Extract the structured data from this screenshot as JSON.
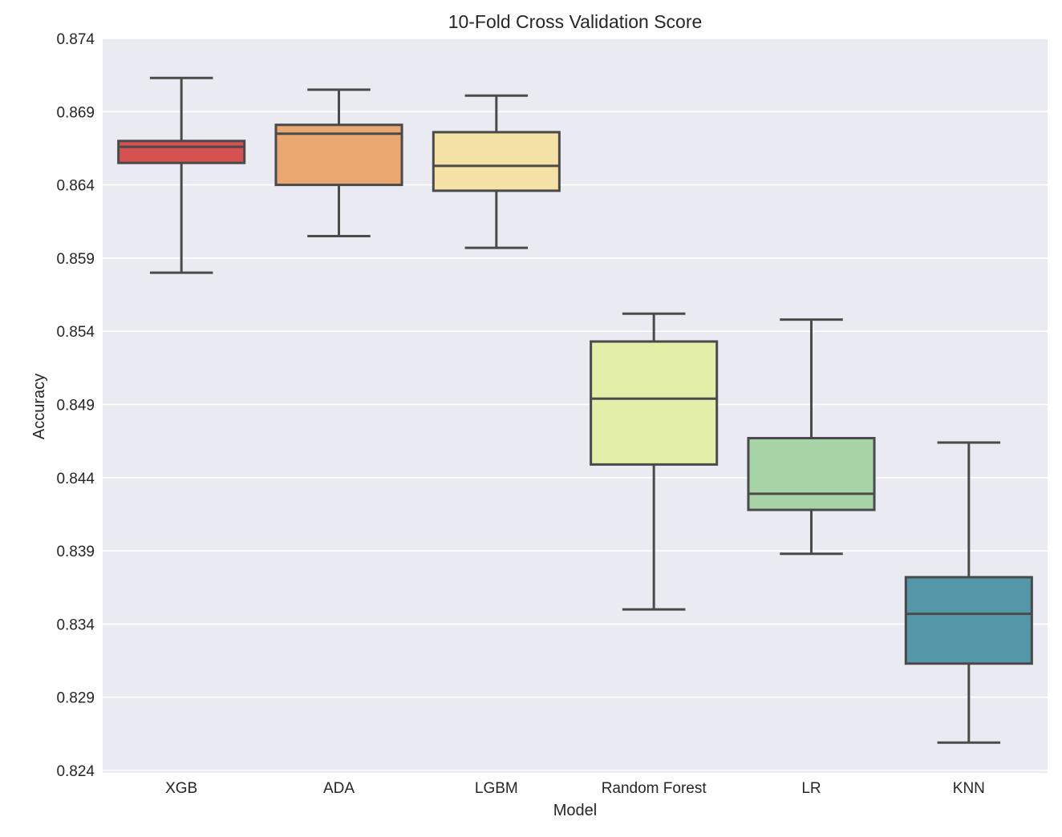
{
  "chart_data": {
    "type": "box",
    "title": "10-Fold Cross Validation Score",
    "xlabel": "Model",
    "ylabel": "Accuracy",
    "ylim": [
      0.824,
      0.874
    ],
    "yticks": [
      "0.874",
      "0.869",
      "0.864",
      "0.859",
      "0.854",
      "0.849",
      "0.844",
      "0.839",
      "0.834",
      "0.829",
      "0.824"
    ],
    "grid": true,
    "categories": [
      "XGB",
      "ADA",
      "LGBM",
      "Random Forest",
      "LR",
      "KNN"
    ],
    "boxes": [
      {
        "name": "XGB",
        "min": 0.858,
        "q1": 0.8655,
        "median": 0.8666,
        "q3": 0.867,
        "max": 0.8713,
        "color": "#d6514f"
      },
      {
        "name": "ADA",
        "min": 0.8605,
        "q1": 0.864,
        "median": 0.8675,
        "q3": 0.8681,
        "max": 0.8705,
        "color": "#e9a86f"
      },
      {
        "name": "LGBM",
        "min": 0.8597,
        "q1": 0.8636,
        "median": 0.8653,
        "q3": 0.8676,
        "max": 0.8701,
        "color": "#f3e1a5"
      },
      {
        "name": "Random Forest",
        "min": 0.835,
        "q1": 0.8449,
        "median": 0.8494,
        "q3": 0.8533,
        "max": 0.8552,
        "color": "#e3eea9"
      },
      {
        "name": "LR",
        "min": 0.8388,
        "q1": 0.8418,
        "median": 0.8429,
        "q3": 0.8467,
        "max": 0.8548,
        "color": "#a7d3a6"
      },
      {
        "name": "KNN",
        "min": 0.8259,
        "q1": 0.8313,
        "median": 0.8347,
        "q3": 0.8372,
        "max": 0.8464,
        "color": "#5397a8"
      }
    ]
  }
}
